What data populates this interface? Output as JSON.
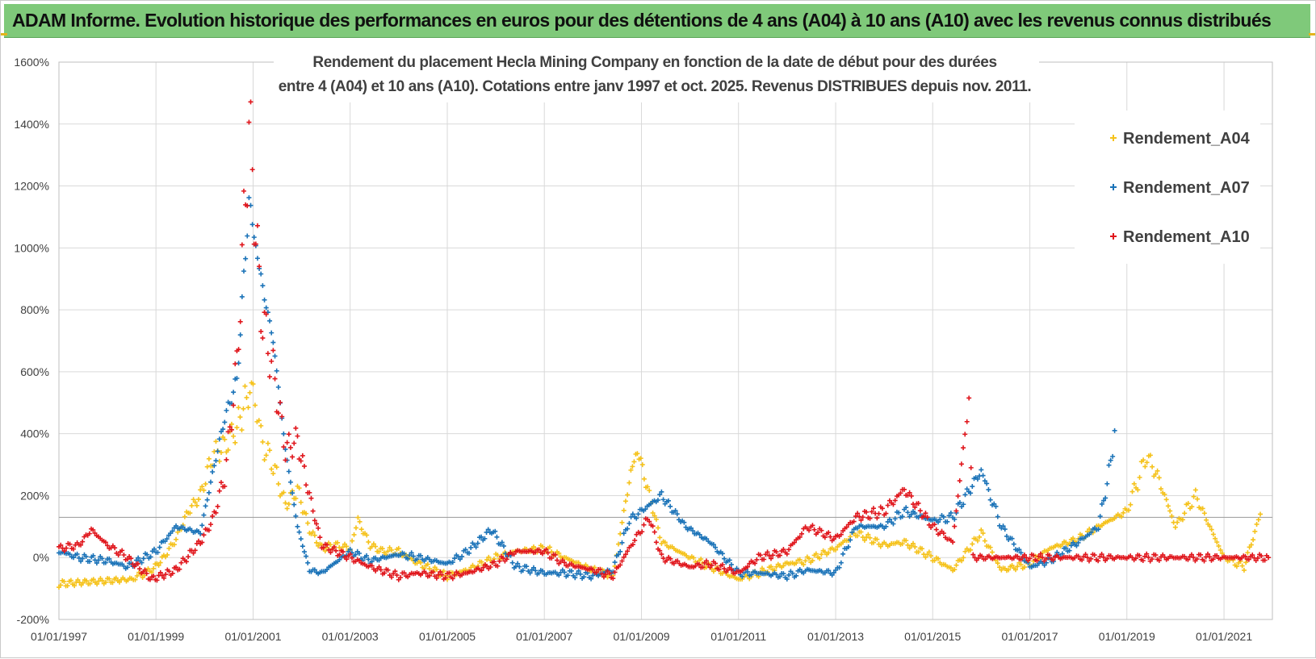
{
  "header": {
    "banner_title": "ADAM Informe. Evolution historique des performances en euros pour des détentions de 4 ans (A04) à 10 ans (A10) avec les revenus connus distribués"
  },
  "colors": {
    "banner_bg": "#7fc97a",
    "series_a04": "#f5c21b",
    "series_a07": "#1b73b8",
    "series_a10": "#e0161c",
    "grid": "#d9d9d9"
  },
  "chart_data": {
    "type": "scatter",
    "title_line1": "Rendement du placement Hecla Mining Company en fonction de la date de début pour des durées",
    "title_line2": "entre 4 (A04) et 10 ans (A10). Cotations entre janv 1997 et oct. 2025.  Revenus DISTRIBUES depuis nov. 2011.",
    "xlabel": "",
    "ylabel": "",
    "x_ticks": [
      "01/01/1997",
      "01/01/1999",
      "01/01/2001",
      "01/01/2003",
      "01/01/2005",
      "01/01/2007",
      "01/01/2009",
      "01/01/2011",
      "01/01/2013",
      "01/01/2015",
      "01/01/2017",
      "01/01/2019",
      "01/01/2021"
    ],
    "xlim": [
      "1997-01-01",
      "2021-12-31"
    ],
    "y_ticks": [
      "-200%",
      "0%",
      "200%",
      "400%",
      "600%",
      "800%",
      "1000%",
      "1200%",
      "1400%",
      "1600%"
    ],
    "ylim": [
      -200,
      1600
    ],
    "reference_line_y": 130,
    "grid": true,
    "legend_position": "top-right",
    "marker": "+",
    "series": [
      {
        "name": "Rendement_A04",
        "points": [
          [
            "1997-01",
            "-85"
          ],
          [
            "1997-07",
            "-80"
          ],
          [
            "1998-01",
            "-75"
          ],
          [
            "1998-07",
            "-70"
          ],
          [
            "1998-12",
            "-40"
          ],
          [
            "1999-03",
            "0"
          ],
          [
            "1999-06",
            "60"
          ],
          [
            "1999-09",
            "150"
          ],
          [
            "1999-12",
            "200"
          ],
          [
            "2000-03",
            "330"
          ],
          [
            "2000-06",
            "360"
          ],
          [
            "2000-09",
            "420"
          ],
          [
            "2000-11",
            "500"
          ],
          [
            "2001-01",
            "560"
          ],
          [
            "2001-03",
            "380"
          ],
          [
            "2001-06",
            "300"
          ],
          [
            "2001-09",
            "170"
          ],
          [
            "2001-12",
            "220"
          ],
          [
            "2002-03",
            "90"
          ],
          [
            "2002-06",
            "30"
          ],
          [
            "2002-09",
            "40"
          ],
          [
            "2003-01",
            "30"
          ],
          [
            "2003-03",
            "120"
          ],
          [
            "2003-06",
            "40"
          ],
          [
            "2003-09",
            "20"
          ],
          [
            "2004-01",
            "20"
          ],
          [
            "2004-06",
            "-20"
          ],
          [
            "2005-01",
            "-60"
          ],
          [
            "2005-06",
            "-40"
          ],
          [
            "2006-01",
            "0"
          ],
          [
            "2006-06",
            "20"
          ],
          [
            "2007-01",
            "30"
          ],
          [
            "2007-06",
            "0"
          ],
          [
            "2008-01",
            "-40"
          ],
          [
            "2008-06",
            "-60"
          ],
          [
            "2008-10",
            "250"
          ],
          [
            "2008-12",
            "350"
          ],
          [
            "2009-03",
            "200"
          ],
          [
            "2009-06",
            "50"
          ],
          [
            "2010-01",
            "0"
          ],
          [
            "2010-06",
            "-30"
          ],
          [
            "2011-01",
            "-70"
          ],
          [
            "2011-06",
            "-50"
          ],
          [
            "2012-01",
            "-20"
          ],
          [
            "2012-06",
            "-10"
          ],
          [
            "2013-01",
            "30"
          ],
          [
            "2013-06",
            "80"
          ],
          [
            "2014-01",
            "40"
          ],
          [
            "2014-06",
            "50"
          ],
          [
            "2015-01",
            "0"
          ],
          [
            "2015-06",
            "-40"
          ],
          [
            "2016-01",
            "80"
          ],
          [
            "2016-06",
            "-40"
          ],
          [
            "2017-01",
            "-20"
          ],
          [
            "2017-06",
            "30"
          ],
          [
            "2018-01",
            "60"
          ],
          [
            "2018-06",
            "100"
          ],
          [
            "2019-01",
            "150"
          ],
          [
            "2019-06",
            "330"
          ],
          [
            "2019-09",
            "250"
          ],
          [
            "2020-01",
            "100"
          ],
          [
            "2020-06",
            "200"
          ],
          [
            "2021-01",
            "0"
          ],
          [
            "2021-06",
            "-30"
          ],
          [
            "2021-10",
            "140"
          ]
        ]
      },
      {
        "name": "Rendement_A07",
        "points": [
          [
            "1997-01",
            "20"
          ],
          [
            "1997-06",
            "0"
          ],
          [
            "1998-01",
            "-10"
          ],
          [
            "1998-06",
            "-30"
          ],
          [
            "1999-01",
            "20"
          ],
          [
            "1999-06",
            "100"
          ],
          [
            "1999-12",
            "80"
          ],
          [
            "2000-03",
            "270"
          ],
          [
            "2000-06",
            "450"
          ],
          [
            "2000-09",
            "570"
          ],
          [
            "2000-12",
            "1150"
          ],
          [
            "2001-03",
            "900"
          ],
          [
            "2001-06",
            "700"
          ],
          [
            "2001-09",
            "350"
          ],
          [
            "2001-12",
            "100"
          ],
          [
            "2002-03",
            "-40"
          ],
          [
            "2002-06",
            "-50"
          ],
          [
            "2003-01",
            "20"
          ],
          [
            "2003-06",
            "-10"
          ],
          [
            "2004-01",
            "10"
          ],
          [
            "2004-06",
            "0"
          ],
          [
            "2005-01",
            "-20"
          ],
          [
            "2005-06",
            "20"
          ],
          [
            "2005-12",
            "90"
          ],
          [
            "2006-06",
            "-30"
          ],
          [
            "2007-01",
            "-50"
          ],
          [
            "2007-06",
            "-50"
          ],
          [
            "2008-01",
            "-60"
          ],
          [
            "2008-06",
            "-40"
          ],
          [
            "2008-10",
            "120"
          ],
          [
            "2009-06",
            "200"
          ],
          [
            "2009-12",
            "100"
          ],
          [
            "2010-06",
            "50"
          ],
          [
            "2011-01",
            "-50"
          ],
          [
            "2011-06",
            "-50"
          ],
          [
            "2012-01",
            "-60"
          ],
          [
            "2012-06",
            "-40"
          ],
          [
            "2013-01",
            "-50"
          ],
          [
            "2013-06",
            "100"
          ],
          [
            "2014-01",
            "100"
          ],
          [
            "2014-06",
            "150"
          ],
          [
            "2015-01",
            "120"
          ],
          [
            "2015-06",
            "130"
          ],
          [
            "2016-01",
            "280"
          ],
          [
            "2016-06",
            "100"
          ],
          [
            "2017-01",
            "-30"
          ],
          [
            "2017-06",
            "-10"
          ],
          [
            "2018-01",
            "50"
          ],
          [
            "2018-06",
            "100"
          ],
          [
            "2018-09",
            "300"
          ],
          [
            "2018-10",
            "410"
          ]
        ]
      },
      {
        "name": "Rendement_A10",
        "points": [
          [
            "1997-01",
            "30"
          ],
          [
            "1997-06",
            "40"
          ],
          [
            "1997-09",
            "90"
          ],
          [
            "1998-01",
            "40"
          ],
          [
            "1998-06",
            "0"
          ],
          [
            "1998-12",
            "-70"
          ],
          [
            "1999-06",
            "-40"
          ],
          [
            "1999-12",
            "50"
          ],
          [
            "2000-03",
            "120"
          ],
          [
            "2000-06",
            "260"
          ],
          [
            "2000-09",
            "620"
          ],
          [
            "2000-12",
            "1400"
          ],
          [
            "2001-03",
            "800"
          ],
          [
            "2001-06",
            "600"
          ],
          [
            "2001-09",
            "350"
          ],
          [
            "2001-12",
            "380"
          ],
          [
            "2002-03",
            "200"
          ],
          [
            "2002-06",
            "40"
          ],
          [
            "2003-01",
            "0"
          ],
          [
            "2003-06",
            "-30"
          ],
          [
            "2004-01",
            "-60"
          ],
          [
            "2004-06",
            "-50"
          ],
          [
            "2005-01",
            "-60"
          ],
          [
            "2005-06",
            "-50"
          ],
          [
            "2006-01",
            "-20"
          ],
          [
            "2006-06",
            "20"
          ],
          [
            "2007-01",
            "20"
          ],
          [
            "2007-06",
            "-20"
          ],
          [
            "2008-01",
            "-40"
          ],
          [
            "2008-06",
            "-60"
          ],
          [
            "2008-10",
            "30"
          ],
          [
            "2009-03",
            "130"
          ],
          [
            "2009-06",
            "0"
          ],
          [
            "2010-01",
            "-30"
          ],
          [
            "2010-06",
            "-20"
          ],
          [
            "2011-01",
            "-50"
          ],
          [
            "2011-06",
            "0"
          ],
          [
            "2012-01",
            "20"
          ],
          [
            "2012-06",
            "100"
          ],
          [
            "2013-01",
            "60"
          ],
          [
            "2013-06",
            "130"
          ],
          [
            "2014-01",
            "150"
          ],
          [
            "2014-06",
            "220"
          ],
          [
            "2015-01",
            "100"
          ],
          [
            "2015-06",
            "50"
          ],
          [
            "2015-09",
            "400"
          ],
          [
            "2015-10",
            "540"
          ],
          [
            "2015-11",
            "0"
          ],
          [
            "2016-06",
            "0"
          ],
          [
            "2017-01",
            "0"
          ],
          [
            "2018-01",
            "0"
          ],
          [
            "2019-01",
            "0"
          ],
          [
            "2020-01",
            "0"
          ],
          [
            "2021-01",
            "0"
          ],
          [
            "2021-12",
            "0"
          ]
        ]
      }
    ]
  }
}
